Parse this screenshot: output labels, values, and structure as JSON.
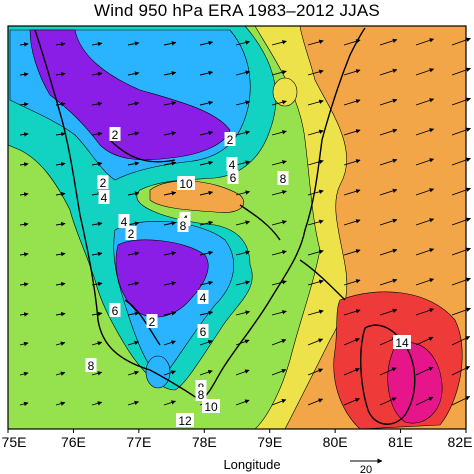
{
  "title": "Wind 950 hPa ERA 1983–2012 JJAS",
  "x_axis": {
    "label": "Longitude",
    "ticks": [
      "75E",
      "76E",
      "77E",
      "78E",
      "79E",
      "80E",
      "81E",
      "82E"
    ]
  },
  "reference_vector": {
    "label": "20"
  },
  "contour_labels": [
    "2",
    "2",
    "2",
    "4",
    "6",
    "8",
    "4",
    "4",
    "10",
    "4",
    "2",
    "8",
    "8",
    "6",
    "2",
    "4",
    "6",
    "8",
    "8",
    "10",
    "12",
    "14"
  ],
  "colors": {
    "lt2": "#8a1ee6",
    "c2_4": "#2ab4ff",
    "c4_6": "#12d2c2",
    "c6_8": "#95e24e",
    "c8_10": "#eee24b",
    "c10_12": "#f2a648",
    "c12_14": "#ef3a3a",
    "gt14": "#e6168a",
    "coast": "#000000",
    "arrow": "#000000"
  }
}
